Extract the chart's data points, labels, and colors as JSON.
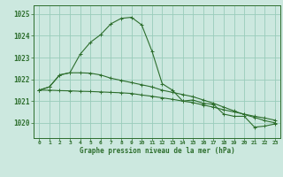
{
  "xlabel": "Graphe pression niveau de la mer (hPa)",
  "background_color": "#cce8df",
  "grid_color": "#99ccbb",
  "line_color": "#2d6e2d",
  "x_ticks": [
    0,
    1,
    2,
    3,
    4,
    5,
    6,
    7,
    8,
    9,
    10,
    11,
    12,
    13,
    14,
    15,
    16,
    17,
    18,
    19,
    20,
    21,
    22,
    23
  ],
  "ylim": [
    1019.3,
    1025.4
  ],
  "yticks": [
    1020,
    1021,
    1022,
    1023,
    1024,
    1025
  ],
  "series1_x": [
    0,
    1,
    2,
    3,
    4,
    5,
    6,
    7,
    8,
    9,
    10,
    11,
    12,
    13,
    14,
    15,
    16,
    17,
    18,
    19,
    20,
    21,
    22,
    23
  ],
  "series1_y": [
    1021.5,
    1021.65,
    1022.2,
    1022.3,
    1023.15,
    1023.7,
    1024.05,
    1024.55,
    1024.8,
    1024.85,
    1024.5,
    1023.3,
    1021.8,
    1021.5,
    1021.0,
    1021.05,
    1020.9,
    1020.85,
    1020.4,
    1020.3,
    1020.3,
    1019.8,
    1019.85,
    1019.95
  ],
  "series2_x": [
    0,
    1,
    2,
    3,
    4,
    5,
    6,
    7,
    8,
    9,
    10,
    11,
    12,
    13,
    14,
    15,
    16,
    17,
    18,
    19,
    20,
    21,
    22,
    23
  ],
  "series2_y": [
    1021.5,
    1021.65,
    1022.2,
    1022.3,
    1022.3,
    1022.28,
    1022.2,
    1022.05,
    1021.95,
    1021.85,
    1021.75,
    1021.65,
    1021.5,
    1021.4,
    1021.3,
    1021.2,
    1021.05,
    1020.9,
    1020.72,
    1020.55,
    1020.38,
    1020.25,
    1020.1,
    1020.0
  ],
  "series3_x": [
    0,
    1,
    2,
    3,
    4,
    5,
    6,
    7,
    8,
    9,
    10,
    11,
    12,
    13,
    14,
    15,
    16,
    17,
    18,
    19,
    20,
    21,
    22,
    23
  ],
  "series3_y": [
    1021.5,
    1021.5,
    1021.48,
    1021.47,
    1021.45,
    1021.44,
    1021.42,
    1021.4,
    1021.38,
    1021.35,
    1021.28,
    1021.22,
    1021.15,
    1021.08,
    1021.0,
    1020.93,
    1020.82,
    1020.72,
    1020.6,
    1020.5,
    1020.4,
    1020.3,
    1020.22,
    1020.12
  ]
}
